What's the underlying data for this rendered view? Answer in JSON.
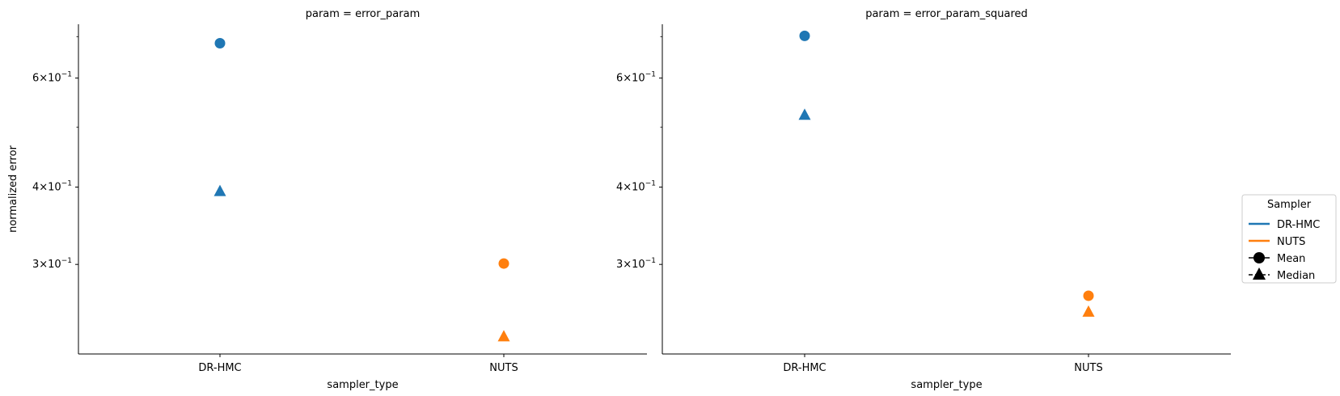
{
  "chart_data": {
    "type": "scatter",
    "y_scale": "log",
    "ylabel": "normalized error",
    "y_range": [
      0.215,
      0.733
    ],
    "y_major_ticks": [
      {
        "value": 0.3,
        "label_base": "3×10",
        "label_exp": "−1"
      },
      {
        "value": 0.4,
        "label_base": "4×10",
        "label_exp": "−1"
      },
      {
        "value": 0.6,
        "label_base": "6×10",
        "label_exp": "−1"
      }
    ],
    "y_minor_ticks": [
      0.5,
      0.7
    ],
    "categories": [
      "DR-HMC",
      "NUTS"
    ],
    "panels": [
      {
        "title": "param = error_param",
        "xlabel": "sampler_type",
        "series": [
          {
            "sampler": "DR-HMC",
            "stat": "Mean",
            "marker": "circle",
            "x": "DR-HMC",
            "y": 0.683
          },
          {
            "sampler": "DR-HMC",
            "stat": "Median",
            "marker": "triangle",
            "x": "DR-HMC",
            "y": 0.393
          },
          {
            "sampler": "NUTS",
            "stat": "Mean",
            "marker": "circle",
            "x": "NUTS",
            "y": 0.301
          },
          {
            "sampler": "NUTS",
            "stat": "Median",
            "marker": "triangle",
            "x": "NUTS",
            "y": 0.229
          }
        ]
      },
      {
        "title": "param = error_param_squared",
        "xlabel": "sampler_type",
        "series": [
          {
            "sampler": "DR-HMC",
            "stat": "Mean",
            "marker": "circle",
            "x": "DR-HMC",
            "y": 0.702
          },
          {
            "sampler": "DR-HMC",
            "stat": "Median",
            "marker": "triangle",
            "x": "DR-HMC",
            "y": 0.522
          },
          {
            "sampler": "NUTS",
            "stat": "Mean",
            "marker": "circle",
            "x": "NUTS",
            "y": 0.267
          },
          {
            "sampler": "NUTS",
            "stat": "Median",
            "marker": "triangle",
            "x": "NUTS",
            "y": 0.251
          }
        ]
      }
    ],
    "legend": {
      "title": "Sampler",
      "placement": "right",
      "entries": [
        {
          "label": "DR-HMC",
          "kind": "line",
          "color": "#1f77b4"
        },
        {
          "label": "NUTS",
          "kind": "line",
          "color": "#ff7f0e"
        },
        {
          "label": "Mean",
          "kind": "circle",
          "color": "#000000"
        },
        {
          "label": "Median",
          "kind": "triangle",
          "color": "#000000"
        }
      ]
    },
    "colors": {
      "DR-HMC": "#1f77b4",
      "NUTS": "#ff7f0e"
    },
    "grid": false
  }
}
